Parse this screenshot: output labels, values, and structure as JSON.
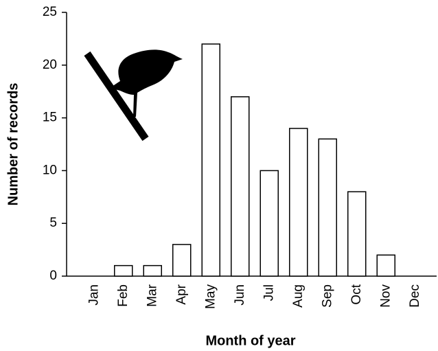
{
  "chart_data": {
    "type": "bar",
    "x_label": "Month of year",
    "y_label": "Number of records",
    "categories": [
      "Jan",
      "Feb",
      "Mar",
      "Apr",
      "May",
      "Jun",
      "Jul",
      "Aug",
      "Sep",
      "Oct",
      "Nov",
      "Dec"
    ],
    "values": [
      0,
      1,
      1,
      3,
      22,
      17,
      10,
      14,
      13,
      8,
      2,
      0
    ],
    "color": "#ffffff",
    "ylim": [
      0,
      25
    ],
    "yticks": [
      0,
      5,
      10,
      15,
      20,
      25
    ],
    "grid": false
  }
}
